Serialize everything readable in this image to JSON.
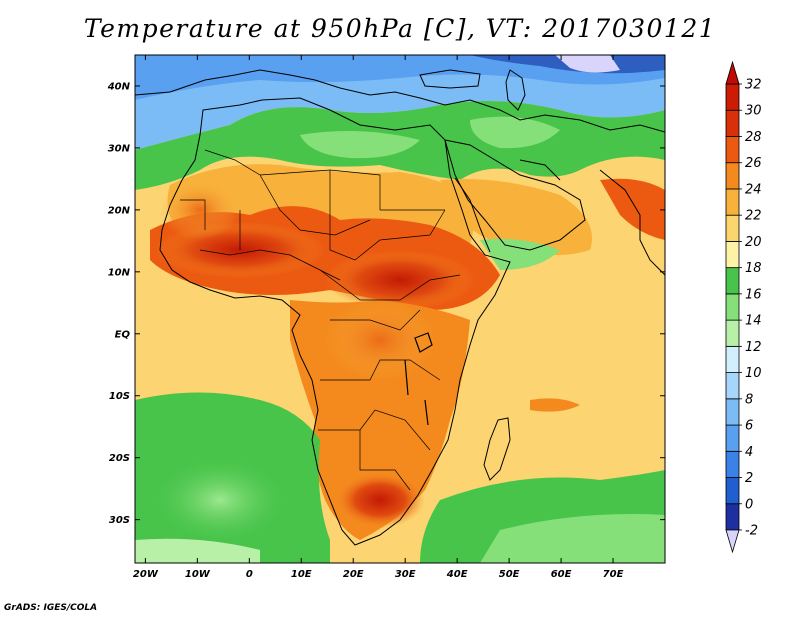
{
  "title": "Temperature at 950hPa [C], VT: 2017030121",
  "credit": "GrADS: IGES/COLA",
  "map": {
    "lon_range": [
      -22,
      80
    ],
    "lat_range": [
      -37,
      45
    ],
    "lon_ticks": [
      {
        "lon": -20,
        "label": "20W"
      },
      {
        "lon": -10,
        "label": "10W"
      },
      {
        "lon": 0,
        "label": "0"
      },
      {
        "lon": 10,
        "label": "10E"
      },
      {
        "lon": 20,
        "label": "20E"
      },
      {
        "lon": 30,
        "label": "30E"
      },
      {
        "lon": 40,
        "label": "40E"
      },
      {
        "lon": 50,
        "label": "50E"
      },
      {
        "lon": 60,
        "label": "60E"
      },
      {
        "lon": 70,
        "label": "70E"
      }
    ],
    "lat_ticks": [
      {
        "lat": 40,
        "label": "40N"
      },
      {
        "lat": 30,
        "label": "30N"
      },
      {
        "lat": 20,
        "label": "20N"
      },
      {
        "lat": 10,
        "label": "10N"
      },
      {
        "lat": 0,
        "label": "EQ"
      },
      {
        "lat": -10,
        "label": "10S"
      },
      {
        "lat": -20,
        "label": "20S"
      },
      {
        "lat": -30,
        "label": "30S"
      }
    ]
  },
  "colorbar": {
    "levels": [
      -2,
      0,
      2,
      4,
      6,
      8,
      10,
      12,
      14,
      16,
      18,
      20,
      22,
      24,
      26,
      28,
      30,
      32
    ],
    "labels": [
      "-2",
      "0",
      "2",
      "4",
      "6",
      "8",
      "10",
      "12",
      "14",
      "16",
      "18",
      "20",
      "22",
      "24",
      "26",
      "28",
      "30",
      "32"
    ],
    "colors": [
      "#1e2fa0",
      "#1f5fd0",
      "#3a82e8",
      "#5aa0f0",
      "#7cbcf6",
      "#a6d6fb",
      "#d2effd",
      "#b8f0a8",
      "#86e07a",
      "#48c44a",
      "#fdf3a6",
      "#fbd66c",
      "#f8b23c",
      "#f48a1e",
      "#ec5a12",
      "#d83008",
      "#cc1c05"
    ],
    "under_color": "#d9d4fb",
    "over_color": "#c00a05"
  }
}
